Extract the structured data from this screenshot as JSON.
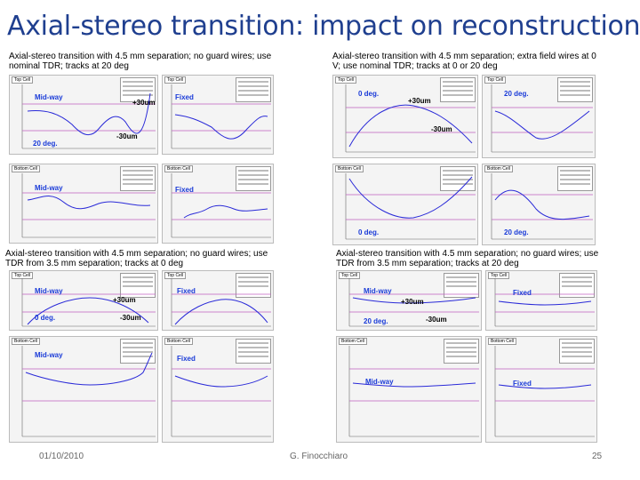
{
  "slide": {
    "title": "Axial-stereo transition: impact on reconstruction",
    "footer_date": "01/10/2010",
    "footer_author": "G. Finocchiaro",
    "page_number": "25"
  },
  "quadrants": [
    {
      "caption": "Axial-stereo transition with 4.5 mm separation; no guard wires; use nominal TDR; tracks at 20 deg",
      "panels": [
        {
          "title": "Top Cell",
          "label": "Mid-way",
          "extra": [
            "+30um",
            "-30um",
            "20 deg."
          ]
        },
        {
          "title": "Top Cell",
          "label": "Fixed",
          "extra": []
        },
        {
          "title": "Bottom Cell",
          "label": "Mid-way",
          "extra": []
        },
        {
          "title": "Bottom Cell",
          "label": "Fixed",
          "extra": []
        }
      ]
    },
    {
      "caption": "Axial-stereo transition with 4.5 mm separation; extra field wires at 0 V; use nominal TDR; tracks at 0 or 20 deg",
      "panels": [
        {
          "title": "Top Cell",
          "label": "0 deg.",
          "extra": [
            "+30um",
            "-30um"
          ]
        },
        {
          "title": "Top Cell",
          "label": "20 deg.",
          "extra": []
        },
        {
          "title": "Bottom Cell",
          "label": "",
          "extra": [
            "0 deg."
          ]
        },
        {
          "title": "Bottom Cell",
          "label": "",
          "extra": [
            "20 deg."
          ]
        }
      ]
    },
    {
      "caption": "Axial-stereo transition with 4.5 mm separation; no guard wires; use TDR from 3.5 mm separation; tracks at 0 deg",
      "panels": [
        {
          "title": "Top Cell",
          "label": "Mid-way",
          "extra": [
            "+30um",
            "-30um",
            "0 deg."
          ]
        },
        {
          "title": "Top Cell",
          "label": "Fixed",
          "extra": []
        },
        {
          "title": "Bottom Cell",
          "label": "Mid-way",
          "extra": []
        },
        {
          "title": "Bottom Cell",
          "label": "Fixed",
          "extra": []
        }
      ]
    },
    {
      "caption": "Axial-stereo transition with 4.5 mm separation; no guard wires; use TDR from 3.5 mm separation; tracks at 20 deg",
      "panels": [
        {
          "title": "Top Cell",
          "label": "Mid-way",
          "extra": [
            "+30um",
            "-30um",
            "20 deg."
          ]
        },
        {
          "title": "Top Cell",
          "label": "Fixed",
          "extra": []
        },
        {
          "title": "Bottom Cell",
          "label": "Mid-way",
          "extra": []
        },
        {
          "title": "Bottom Cell",
          "label": "Fixed",
          "extra": []
        }
      ]
    }
  ]
}
